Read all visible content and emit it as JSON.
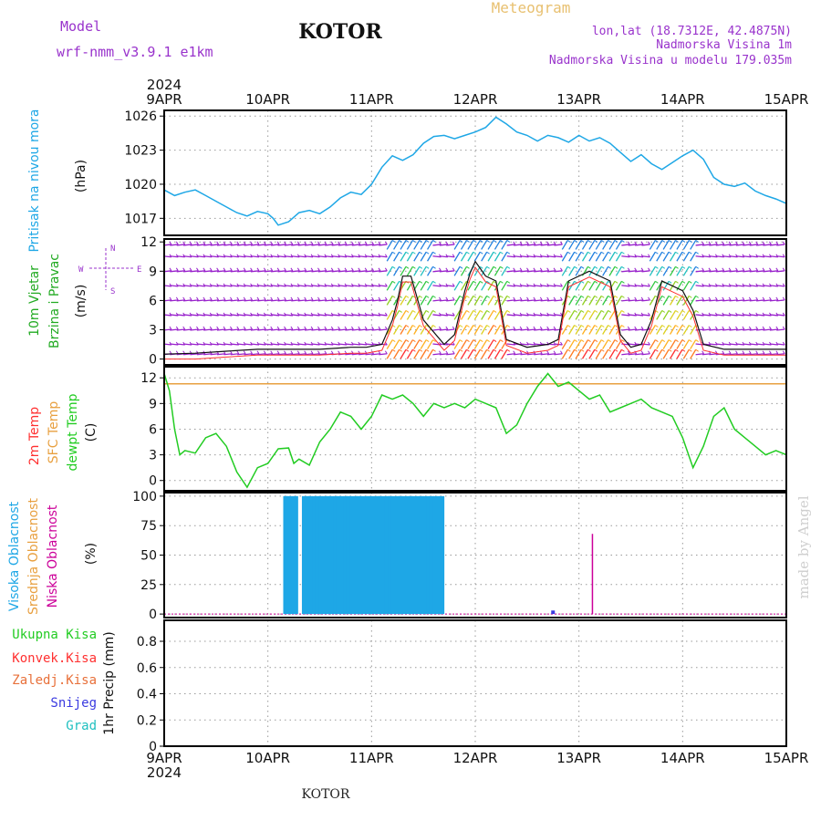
{
  "header": {
    "model_label": "Model",
    "model_name": "wrf-nmm_v3.9.1  e1km",
    "title": "KOTOR",
    "meteogram_label": "Meteogram",
    "lonlat": "lon,lat (18.7312E, 42.4875N)",
    "altitude": "Nadmorska Visina 1m",
    "model_altitude": "Nadmorska Visina u modelu 179.035m"
  },
  "footer": {
    "location": "KOTOR",
    "credit": "made by Angel"
  },
  "colors": {
    "pressure": "#1ea7e6",
    "temp2m": "#ff3030",
    "sfc": "#e8a040",
    "dewpt": "#22cc22",
    "wind_purple": "#9922cc",
    "cloud_high": "#1ea7e6",
    "cloud_mid": "#e8a040",
    "cloud_low": "#cc0099",
    "header_purple": "#9933cc",
    "meteogram": "#e8c070"
  },
  "chart_data": [
    {
      "type": "line",
      "panel": "pressure",
      "ylabel_name": "Pritisak na nivou mora",
      "ylabel_unit": "(hPa)",
      "year": "2024",
      "x_labels": [
        "9APR",
        "10APR",
        "11APR",
        "12APR",
        "13APR",
        "14APR",
        "15APR"
      ],
      "yticks": [
        1017,
        1020,
        1023,
        1026
      ],
      "ylim": [
        1015.5,
        1026.5
      ],
      "series": [
        {
          "x": [
            0,
            0.1,
            0.2,
            0.3,
            0.4,
            0.5,
            0.6,
            0.7,
            0.8,
            0.9,
            1.0,
            1.05,
            1.1,
            1.2,
            1.3,
            1.4,
            1.5,
            1.6,
            1.7,
            1.8,
            1.9,
            2.0,
            2.1,
            2.2,
            2.3,
            2.4,
            2.5,
            2.6,
            2.7,
            2.8,
            2.9,
            3.0,
            3.1,
            3.2,
            3.3,
            3.4,
            3.5,
            3.6,
            3.7,
            3.8,
            3.9,
            4.0,
            4.1,
            4.2,
            4.3,
            4.4,
            4.5,
            4.6,
            4.7,
            4.8,
            4.9,
            5.0,
            5.1,
            5.2,
            5.3,
            5.4,
            5.5,
            5.6,
            5.7,
            5.8,
            5.9,
            6.0
          ],
          "values": [
            1019.5,
            1019.0,
            1019.3,
            1019.5,
            1019.0,
            1018.5,
            1018.0,
            1017.5,
            1017.2,
            1017.6,
            1017.4,
            1017.0,
            1016.4,
            1016.7,
            1017.5,
            1017.7,
            1017.4,
            1018.0,
            1018.8,
            1019.3,
            1019.1,
            1020.0,
            1021.5,
            1022.5,
            1022.1,
            1022.6,
            1023.6,
            1024.2,
            1024.3,
            1024.0,
            1024.3,
            1024.6,
            1025.0,
            1025.9,
            1025.3,
            1024.6,
            1024.3,
            1023.8,
            1024.3,
            1024.1,
            1023.7,
            1024.3,
            1023.8,
            1024.1,
            1023.6,
            1022.8,
            1022.0,
            1022.6,
            1021.8,
            1021.3,
            1021.9,
            1022.5,
            1023.0,
            1022.2,
            1020.6,
            1020.0,
            1019.8,
            1020.1,
            1019.4,
            1019.0,
            1018.7,
            1018.3
          ]
        }
      ]
    },
    {
      "type": "line",
      "panel": "wind",
      "ylabel_name": "10m Vjetar",
      "ylabel_name2": "Brzina i Pravac",
      "ylabel_unit": "(m/s)",
      "compass": {
        "n": "N",
        "s": "S",
        "e": "E",
        "w": "W"
      },
      "yticks": [
        0,
        3,
        6,
        9,
        12
      ],
      "ylim": [
        -0.6,
        12.3
      ],
      "series": [
        {
          "name": "wind speed",
          "x": [
            0,
            0.3,
            0.6,
            0.9,
            1.2,
            1.5,
            1.8,
            1.95,
            2.1,
            2.2,
            2.25,
            2.3,
            2.38,
            2.5,
            2.7,
            2.8,
            2.9,
            2.95,
            3.0,
            3.1,
            3.2,
            3.3,
            3.5,
            3.7,
            3.8,
            3.9,
            4.1,
            4.3,
            4.4,
            4.5,
            4.6,
            4.7,
            4.75,
            4.8,
            4.9,
            5.0,
            5.1,
            5.2,
            5.4,
            5.7,
            6.0
          ],
          "values": [
            0.5,
            0.6,
            0.8,
            1.0,
            1.0,
            1.0,
            1.2,
            1.2,
            1.5,
            4.0,
            6.0,
            8.5,
            8.5,
            4.0,
            1.5,
            2.5,
            7.0,
            8.8,
            10.0,
            8.5,
            8.0,
            2.0,
            1.2,
            1.5,
            2.0,
            8.0,
            9.0,
            8.0,
            2.5,
            1.2,
            1.5,
            4.0,
            6.0,
            8.0,
            7.5,
            7.0,
            5.0,
            1.5,
            1.0,
            1.0,
            1.0
          ]
        }
      ]
    },
    {
      "type": "line",
      "panel": "temperature",
      "ylabel_names": [
        "2m Temp",
        "SFC Temp",
        "dewpt Temp"
      ],
      "ylabel_unit": "(C)",
      "yticks": [
        0,
        3,
        6,
        9,
        12
      ],
      "ylim": [
        -1.2,
        13.3
      ],
      "sfc_value": 11.3,
      "series": [
        {
          "name": "dewpt Temp",
          "x": [
            0,
            0.05,
            0.1,
            0.15,
            0.2,
            0.3,
            0.4,
            0.5,
            0.6,
            0.7,
            0.8,
            0.9,
            1.0,
            1.1,
            1.2,
            1.25,
            1.3,
            1.4,
            1.5,
            1.6,
            1.7,
            1.8,
            1.9,
            2.0,
            2.1,
            2.2,
            2.3,
            2.4,
            2.5,
            2.6,
            2.7,
            2.8,
            2.9,
            3.0,
            3.1,
            3.2,
            3.3,
            3.4,
            3.5,
            3.6,
            3.7,
            3.8,
            3.9,
            4.0,
            4.1,
            4.2,
            4.3,
            4.4,
            4.5,
            4.6,
            4.7,
            4.8,
            4.9,
            5.0,
            5.1,
            5.2,
            5.3,
            5.4,
            5.5,
            5.6,
            5.7,
            5.8,
            5.9,
            6.0
          ],
          "values": [
            12.5,
            10.5,
            6.0,
            3.0,
            3.5,
            3.2,
            5.0,
            5.5,
            4.0,
            1.0,
            -0.8,
            1.5,
            2.0,
            3.7,
            3.8,
            2.0,
            2.5,
            1.8,
            4.5,
            6.0,
            8.0,
            7.5,
            6.0,
            7.5,
            10.0,
            9.5,
            10.0,
            9.0,
            7.5,
            9.0,
            8.5,
            9.0,
            8.5,
            9.5,
            9.0,
            8.5,
            5.5,
            6.5,
            9.0,
            11.0,
            12.5,
            11.0,
            11.5,
            10.5,
            9.5,
            10.0,
            8.0,
            8.5,
            9.0,
            9.5,
            8.5,
            8.0,
            7.5,
            5.0,
            1.5,
            4.0,
            7.5,
            8.5,
            6.0,
            5.0,
            4.0,
            3.0,
            3.5,
            3.0
          ]
        }
      ]
    },
    {
      "type": "bar",
      "panel": "clouds",
      "ylabel_names": [
        "Visoka Oblacnost",
        "Srednja Oblacnost",
        "Niska Oblacnost"
      ],
      "ylabel_unit": "(%)",
      "yticks": [
        0,
        25,
        50,
        75,
        100
      ],
      "ylim": [
        -3,
        103
      ],
      "high_bars": {
        "x": [
          1.17,
          1.2,
          1.24,
          1.27,
          1.35,
          1.38,
          1.41,
          1.45,
          1.48,
          1.51,
          1.55,
          1.58,
          1.61,
          1.65,
          1.68,
          1.71,
          1.75,
          1.78,
          1.81,
          1.85,
          1.88,
          1.91,
          1.95,
          1.98,
          2.01,
          2.05,
          2.08,
          2.11,
          2.15,
          2.18,
          2.21,
          2.25,
          2.28,
          2.31,
          2.35,
          2.38,
          2.41,
          2.45,
          2.48,
          2.51,
          2.55,
          2.58,
          2.61,
          2.65,
          2.68
        ],
        "value": 100
      },
      "low_bars": [
        {
          "x": 4.13,
          "value": 68
        }
      ],
      "small_bars": [
        {
          "x": 3.75,
          "value": 3
        }
      ]
    },
    {
      "type": "bar",
      "panel": "precip",
      "legend": [
        "Ukupna  Kisa",
        "Konvek.Kisa",
        "Zaledj.Kisa",
        "Snijeg",
        "Grad"
      ],
      "legend_colors": [
        "#22cc22",
        "#ff3030",
        "#e8703a",
        "#3a3ae0",
        "#20c0c0"
      ],
      "ylabel_unit": "1hr Precip (mm)",
      "yticks": [
        0,
        0.2,
        0.4,
        0.6,
        0.8
      ],
      "ylim": [
        0,
        0.96
      ],
      "values": []
    }
  ]
}
